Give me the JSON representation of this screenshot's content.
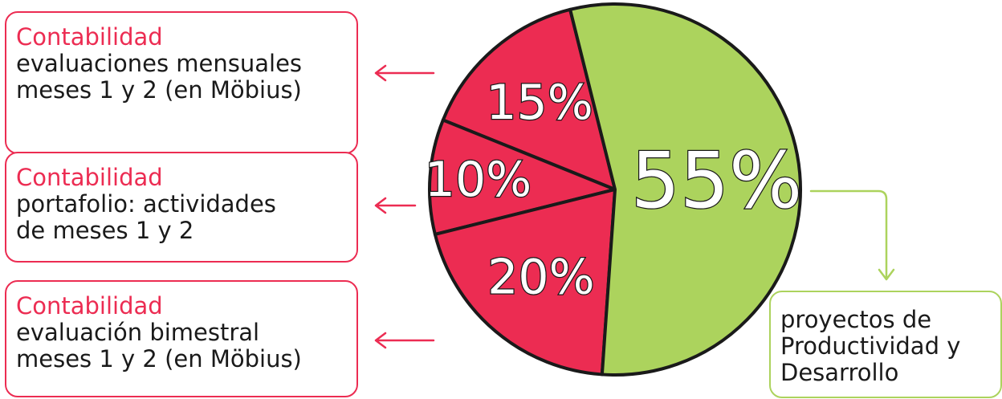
{
  "colors": {
    "red": "#ec2c52",
    "green": "#acd35d",
    "outline": "#1a1a1a",
    "label_fill": "#ffffff"
  },
  "boxes": [
    {
      "title": "Contabilidad",
      "desc": "evaluaciones mensuales\nmeses 1 y 2 (en Möbius)"
    },
    {
      "title": "Contabilidad",
      "desc": "portafolio: actividades\nde meses 1 y 2"
    },
    {
      "title": "Contabilidad",
      "desc": "evaluación bimestral\nmeses 1 y 2 (en Möbius)"
    },
    {
      "title": "",
      "desc": "proyectos de\nProductividad y\nDesarrollo"
    }
  ],
  "chart_data": {
    "type": "pie",
    "title": "",
    "start_angle_deg": -14,
    "direction": "counterclockwise",
    "slices": [
      {
        "label": "15%",
        "value": 15,
        "color": "#ec2c52"
      },
      {
        "label": "10%",
        "value": 10,
        "color": "#ec2c52"
      },
      {
        "label": "20%",
        "value": 20,
        "color": "#ec2c52"
      },
      {
        "label": "55%",
        "value": 55,
        "color": "#acd35d"
      }
    ]
  }
}
